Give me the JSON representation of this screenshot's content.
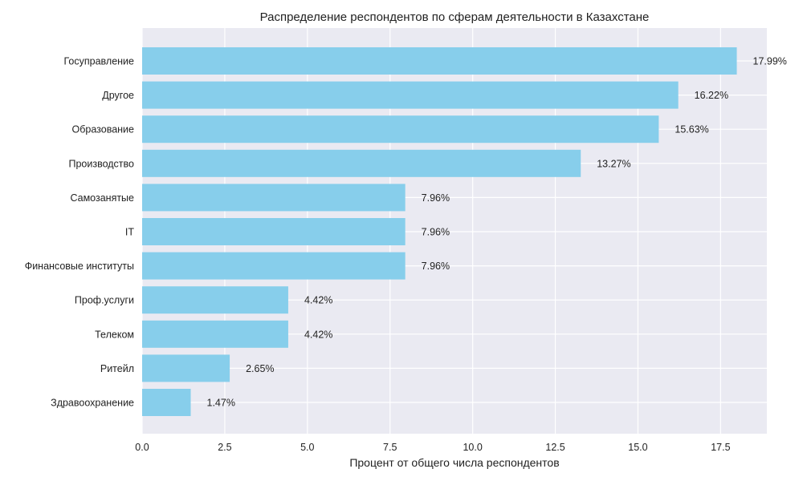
{
  "chart_data": {
    "type": "bar",
    "orientation": "horizontal",
    "title": "Распределение респондентов по сферам деятельности в Казахстане",
    "xlabel": "Процент от общего числа респондентов",
    "ylabel": "",
    "xlim": [
      0,
      18.9
    ],
    "xticks": [
      0.0,
      2.5,
      5.0,
      7.5,
      10.0,
      12.5,
      15.0,
      17.5
    ],
    "xtick_labels": [
      "0.0",
      "2.5",
      "5.0",
      "7.5",
      "10.0",
      "12.5",
      "15.0",
      "17.5"
    ],
    "grid": true,
    "bar_color": "#87CEEB",
    "background_color": "#EAEAF2",
    "categories": [
      "Госуправление",
      "Другое",
      "Образование",
      "Производство",
      "Самозанятые",
      "IT",
      "Финансовые институты",
      "Проф.услуги",
      "Телеком",
      "Ритейл",
      "Здравоохранение"
    ],
    "values": [
      17.99,
      16.22,
      15.63,
      13.27,
      7.96,
      7.96,
      7.96,
      4.42,
      4.42,
      2.65,
      1.47
    ],
    "value_labels": [
      "17.99%",
      "16.22%",
      "15.63%",
      "13.27%",
      "7.96%",
      "7.96%",
      "7.96%",
      "4.42%",
      "4.42%",
      "2.65%",
      "1.47%"
    ]
  }
}
